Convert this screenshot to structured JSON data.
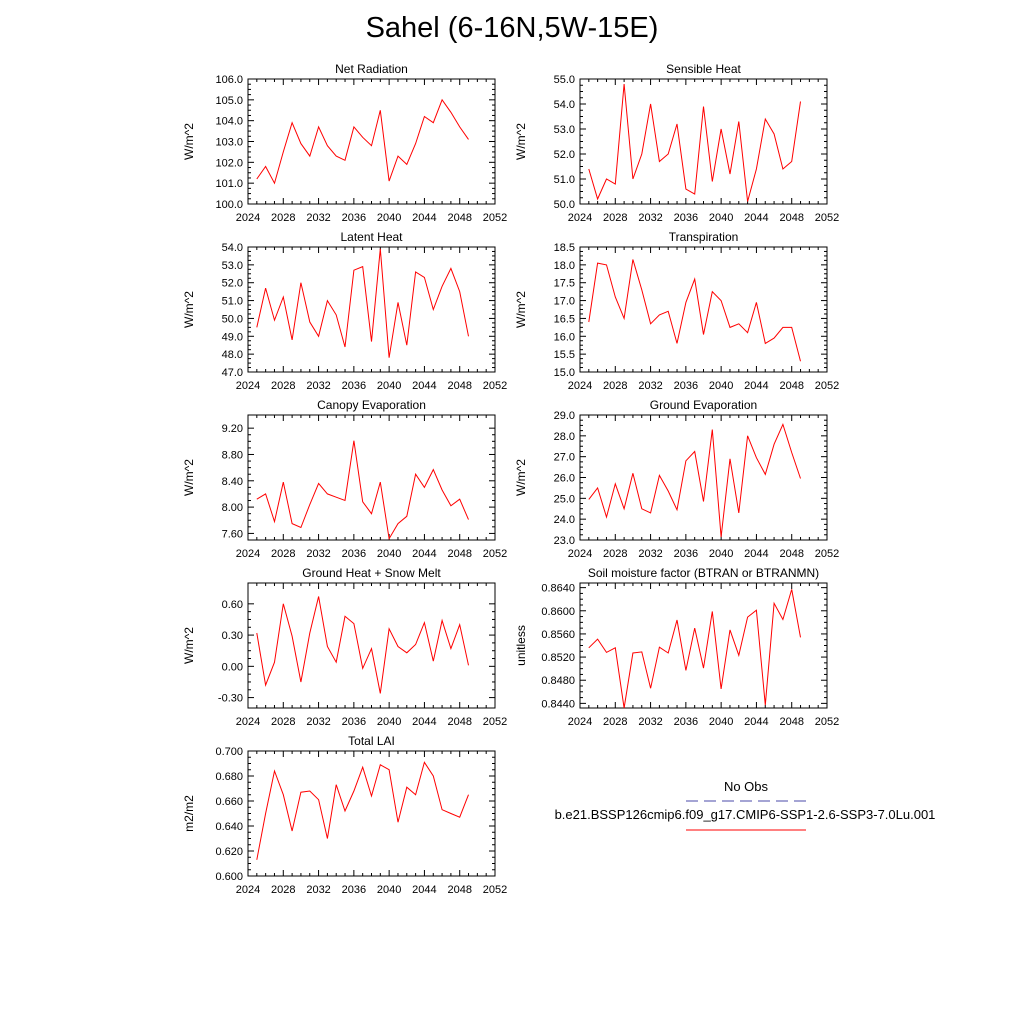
{
  "title": "Sahel (6-16N,5W-15E)",
  "legend": {
    "obs_label": "No Obs",
    "obs_color": "#4a4aa8",
    "case_label": "b.e21.BSSP126cmip6.f09_g17.CMIP6-SSP1-2.6-SSP3-7.0Lu.001",
    "case_color": "#ff0000"
  },
  "chart_data": [
    {
      "type": "line",
      "title": "Net Radiation",
      "ylabel": "W/m^2",
      "xlim": [
        2024,
        2052
      ],
      "ylim": [
        100.0,
        106.0
      ],
      "xticks": [
        "2024",
        "2028",
        "2032",
        "2036",
        "2040",
        "2044",
        "2048",
        "2052"
      ],
      "yticks": [
        "100.0",
        "101.0",
        "102.0",
        "103.0",
        "104.0",
        "105.0",
        "106.0"
      ],
      "x": [
        2025,
        2026,
        2027,
        2028,
        2029,
        2030,
        2031,
        2032,
        2033,
        2034,
        2035,
        2036,
        2037,
        2038,
        2039,
        2040,
        2041,
        2042,
        2043,
        2044,
        2045,
        2046,
        2047,
        2048,
        2049
      ],
      "values": [
        101.2,
        101.8,
        101.0,
        102.5,
        103.9,
        102.9,
        102.3,
        103.7,
        102.8,
        102.3,
        102.1,
        103.7,
        103.2,
        102.8,
        104.5,
        101.1,
        102.3,
        101.9,
        102.9,
        104.2,
        103.9,
        105.0,
        104.4,
        103.7,
        103.1
      ]
    },
    {
      "type": "line",
      "title": "Sensible Heat",
      "ylabel": "W/m^2",
      "xlim": [
        2024,
        2052
      ],
      "ylim": [
        50.0,
        55.0
      ],
      "xticks": [
        "2024",
        "2028",
        "2032",
        "2036",
        "2040",
        "2044",
        "2048",
        "2052"
      ],
      "yticks": [
        "50.0",
        "51.0",
        "52.0",
        "53.0",
        "54.0",
        "55.0"
      ],
      "x": [
        2025,
        2026,
        2027,
        2028,
        2029,
        2030,
        2031,
        2032,
        2033,
        2034,
        2035,
        2036,
        2037,
        2038,
        2039,
        2040,
        2041,
        2042,
        2043,
        2044,
        2045,
        2046,
        2047,
        2048,
        2049
      ],
      "values": [
        51.4,
        50.2,
        51.0,
        50.8,
        54.8,
        51.0,
        52.0,
        54.0,
        51.7,
        52.0,
        53.2,
        50.6,
        50.4,
        53.9,
        50.9,
        53.0,
        51.2,
        53.3,
        50.1,
        51.4,
        53.4,
        52.8,
        51.4,
        51.7,
        54.1
      ]
    },
    {
      "type": "line",
      "title": "Latent Heat",
      "ylabel": "W/m^2",
      "xlim": [
        2024,
        2052
      ],
      "ylim": [
        47.0,
        54.0
      ],
      "xticks": [
        "2024",
        "2028",
        "2032",
        "2036",
        "2040",
        "2044",
        "2048",
        "2052"
      ],
      "yticks": [
        "47.0",
        "48.0",
        "49.0",
        "50.0",
        "51.0",
        "52.0",
        "53.0",
        "54.0"
      ],
      "x": [
        2025,
        2026,
        2027,
        2028,
        2029,
        2030,
        2031,
        2032,
        2033,
        2034,
        2035,
        2036,
        2037,
        2038,
        2039,
        2040,
        2041,
        2042,
        2043,
        2044,
        2045,
        2046,
        2047,
        2048,
        2049
      ],
      "values": [
        49.5,
        51.7,
        49.9,
        51.2,
        48.8,
        52.0,
        49.8,
        49.0,
        51.0,
        50.2,
        48.4,
        52.7,
        52.9,
        48.7,
        53.9,
        47.8,
        50.9,
        48.5,
        52.6,
        52.3,
        50.5,
        51.8,
        52.8,
        51.5,
        49.0
      ]
    },
    {
      "type": "line",
      "title": "Transpiration",
      "ylabel": "W/m^2",
      "xlim": [
        2024,
        2052
      ],
      "ylim": [
        15.0,
        18.5
      ],
      "xticks": [
        "2024",
        "2028",
        "2032",
        "2036",
        "2040",
        "2044",
        "2048",
        "2052"
      ],
      "yticks": [
        "15.0",
        "15.5",
        "16.0",
        "16.5",
        "17.0",
        "17.5",
        "18.0",
        "18.5"
      ],
      "x": [
        2025,
        2026,
        2027,
        2028,
        2029,
        2030,
        2031,
        2032,
        2033,
        2034,
        2035,
        2036,
        2037,
        2038,
        2039,
        2040,
        2041,
        2042,
        2043,
        2044,
        2045,
        2046,
        2047,
        2048,
        2049
      ],
      "values": [
        16.4,
        18.05,
        18.0,
        17.1,
        16.5,
        18.15,
        17.3,
        16.35,
        16.6,
        16.7,
        15.8,
        16.95,
        17.6,
        16.05,
        17.25,
        17.0,
        16.25,
        16.35,
        16.1,
        16.95,
        15.8,
        15.95,
        16.25,
        16.25,
        15.3
      ]
    },
    {
      "type": "line",
      "title": "Canopy Evaporation",
      "ylabel": "W/m^2",
      "xlim": [
        2024,
        2052
      ],
      "ylim": [
        7.5,
        9.4
      ],
      "xticks": [
        "2024",
        "2028",
        "2032",
        "2036",
        "2040",
        "2044",
        "2048",
        "2052"
      ],
      "ytick_values": [
        7.6,
        8.0,
        8.4,
        8.8,
        9.2
      ],
      "yticks": [
        "7.60",
        "8.00",
        "8.40",
        "8.80",
        "9.20"
      ],
      "x": [
        2025,
        2026,
        2027,
        2028,
        2029,
        2030,
        2031,
        2032,
        2033,
        2034,
        2035,
        2036,
        2037,
        2038,
        2039,
        2040,
        2041,
        2042,
        2043,
        2044,
        2045,
        2046,
        2047,
        2048,
        2049
      ],
      "values": [
        8.12,
        8.2,
        7.78,
        8.38,
        7.75,
        7.69,
        8.04,
        8.36,
        8.2,
        8.15,
        8.1,
        9.01,
        8.08,
        7.9,
        8.38,
        7.52,
        7.75,
        7.86,
        8.5,
        8.3,
        8.57,
        8.26,
        8.02,
        8.12,
        7.81
      ]
    },
    {
      "type": "line",
      "title": "Ground Evaporation",
      "ylabel": "W/m^2",
      "xlim": [
        2024,
        2052
      ],
      "ylim": [
        23.0,
        29.0
      ],
      "xticks": [
        "2024",
        "2028",
        "2032",
        "2036",
        "2040",
        "2044",
        "2048",
        "2052"
      ],
      "yticks": [
        "23.0",
        "24.0",
        "25.0",
        "26.0",
        "27.0",
        "28.0",
        "29.0"
      ],
      "x": [
        2025,
        2026,
        2027,
        2028,
        2029,
        2030,
        2031,
        2032,
        2033,
        2034,
        2035,
        2036,
        2037,
        2038,
        2039,
        2040,
        2041,
        2042,
        2043,
        2044,
        2045,
        2046,
        2047,
        2048,
        2049
      ],
      "values": [
        24.95,
        25.5,
        24.1,
        25.7,
        24.5,
        26.2,
        24.5,
        24.3,
        26.1,
        25.35,
        24.45,
        26.8,
        27.25,
        24.85,
        28.3,
        23.15,
        26.9,
        24.3,
        28.0,
        26.95,
        26.15,
        27.6,
        28.55,
        27.2,
        25.95
      ]
    },
    {
      "type": "line",
      "title": "Ground Heat + Snow Melt",
      "ylabel": "W/m^2",
      "xlim": [
        2024,
        2052
      ],
      "ylim": [
        -0.4,
        0.8
      ],
      "xticks": [
        "2024",
        "2028",
        "2032",
        "2036",
        "2040",
        "2044",
        "2048",
        "2052"
      ],
      "ytick_values": [
        -0.3,
        0.0,
        0.3,
        0.6
      ],
      "yticks": [
        "-0.30",
        "0.00",
        "0.30",
        "0.60"
      ],
      "x": [
        2025,
        2026,
        2027,
        2028,
        2029,
        2030,
        2031,
        2032,
        2033,
        2034,
        2035,
        2036,
        2037,
        2038,
        2039,
        2040,
        2041,
        2042,
        2043,
        2044,
        2045,
        2046,
        2047,
        2048,
        2049
      ],
      "values": [
        0.32,
        -0.18,
        0.04,
        0.6,
        0.29,
        -0.15,
        0.32,
        0.67,
        0.19,
        0.04,
        0.48,
        0.41,
        -0.02,
        0.17,
        -0.26,
        0.36,
        0.19,
        0.13,
        0.21,
        0.42,
        0.05,
        0.44,
        0.17,
        0.4,
        0.01
      ]
    },
    {
      "type": "line",
      "title": "Soil moisture factor (BTRAN or BTRANMN)",
      "ylabel": "unitless",
      "xlim": [
        2024,
        2052
      ],
      "ylim": [
        0.8432,
        0.8648
      ],
      "xticks": [
        "2024",
        "2028",
        "2032",
        "2036",
        "2040",
        "2044",
        "2048",
        "2052"
      ],
      "ytick_values": [
        0.844,
        0.848,
        0.852,
        0.856,
        0.86,
        0.864
      ],
      "yticks": [
        "0.8440",
        "0.8480",
        "0.8520",
        "0.8560",
        "0.8600",
        "0.8640"
      ],
      "x": [
        2025,
        2026,
        2027,
        2028,
        2029,
        2030,
        2031,
        2032,
        2033,
        2034,
        2035,
        2036,
        2037,
        2038,
        2039,
        2040,
        2041,
        2042,
        2043,
        2044,
        2045,
        2046,
        2047,
        2048,
        2049
      ],
      "values": [
        0.8536,
        0.8551,
        0.8528,
        0.8536,
        0.8432,
        0.8527,
        0.8529,
        0.8466,
        0.8537,
        0.8527,
        0.8584,
        0.8497,
        0.857,
        0.8501,
        0.8599,
        0.8465,
        0.8567,
        0.8523,
        0.8589,
        0.8601,
        0.8437,
        0.8613,
        0.8585,
        0.8637,
        0.8554
      ]
    },
    {
      "type": "line",
      "title": "Total LAI",
      "ylabel": "m2/m2",
      "xlim": [
        2024,
        2052
      ],
      "ylim": [
        0.6,
        0.7
      ],
      "xticks": [
        "2024",
        "2028",
        "2032",
        "2036",
        "2040",
        "2044",
        "2048",
        "2052"
      ],
      "yticks": [
        "0.600",
        "0.620",
        "0.640",
        "0.660",
        "0.680",
        "0.700"
      ],
      "x": [
        2025,
        2026,
        2027,
        2028,
        2029,
        2030,
        2031,
        2032,
        2033,
        2034,
        2035,
        2036,
        2037,
        2038,
        2039,
        2040,
        2041,
        2042,
        2043,
        2044,
        2045,
        2046,
        2047,
        2048,
        2049
      ],
      "values": [
        0.613,
        0.65,
        0.684,
        0.665,
        0.636,
        0.667,
        0.668,
        0.661,
        0.63,
        0.673,
        0.652,
        0.668,
        0.687,
        0.664,
        0.689,
        0.685,
        0.643,
        0.671,
        0.665,
        0.691,
        0.68,
        0.653,
        0.65,
        0.647,
        0.665
      ]
    }
  ]
}
